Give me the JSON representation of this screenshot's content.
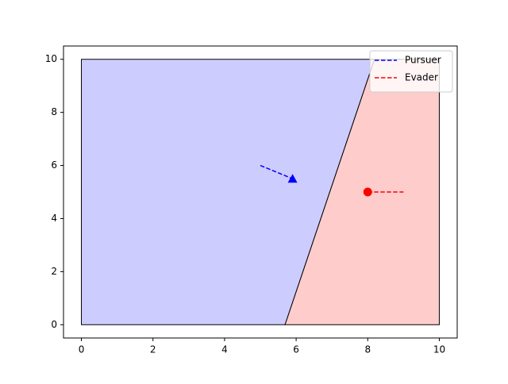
{
  "chart_data": {
    "type": "line",
    "xlim": [
      -0.5,
      10.5
    ],
    "ylim": [
      -0.5,
      10.5
    ],
    "xticks": [
      0,
      2,
      4,
      6,
      8,
      10
    ],
    "yticks": [
      0,
      2,
      4,
      6,
      8,
      10
    ],
    "regions": [
      {
        "color": "#ccccff",
        "x": [
          0,
          5.69,
          8.19,
          0
        ],
        "y": [
          0,
          0,
          10,
          10
        ]
      },
      {
        "color": "#ffcccc",
        "x": [
          5.69,
          10,
          10,
          8.19
        ],
        "y": [
          0,
          0,
          10,
          10
        ]
      }
    ],
    "series": [
      {
        "name": "Pursuer",
        "color": "#0000ff",
        "x": [
          5,
          5.9
        ],
        "y": [
          6,
          5.5
        ]
      },
      {
        "name": "Evader",
        "color": "#ff0000",
        "x": [
          8,
          9
        ],
        "y": [
          5,
          5
        ]
      }
    ],
    "markers": [
      {
        "shape": "triangle",
        "color": "#0000ff",
        "x": 5.9,
        "y": 5.5
      },
      {
        "shape": "circle",
        "color": "#ff0000",
        "x": 8,
        "y": 5
      }
    ],
    "legend": "upper right"
  }
}
